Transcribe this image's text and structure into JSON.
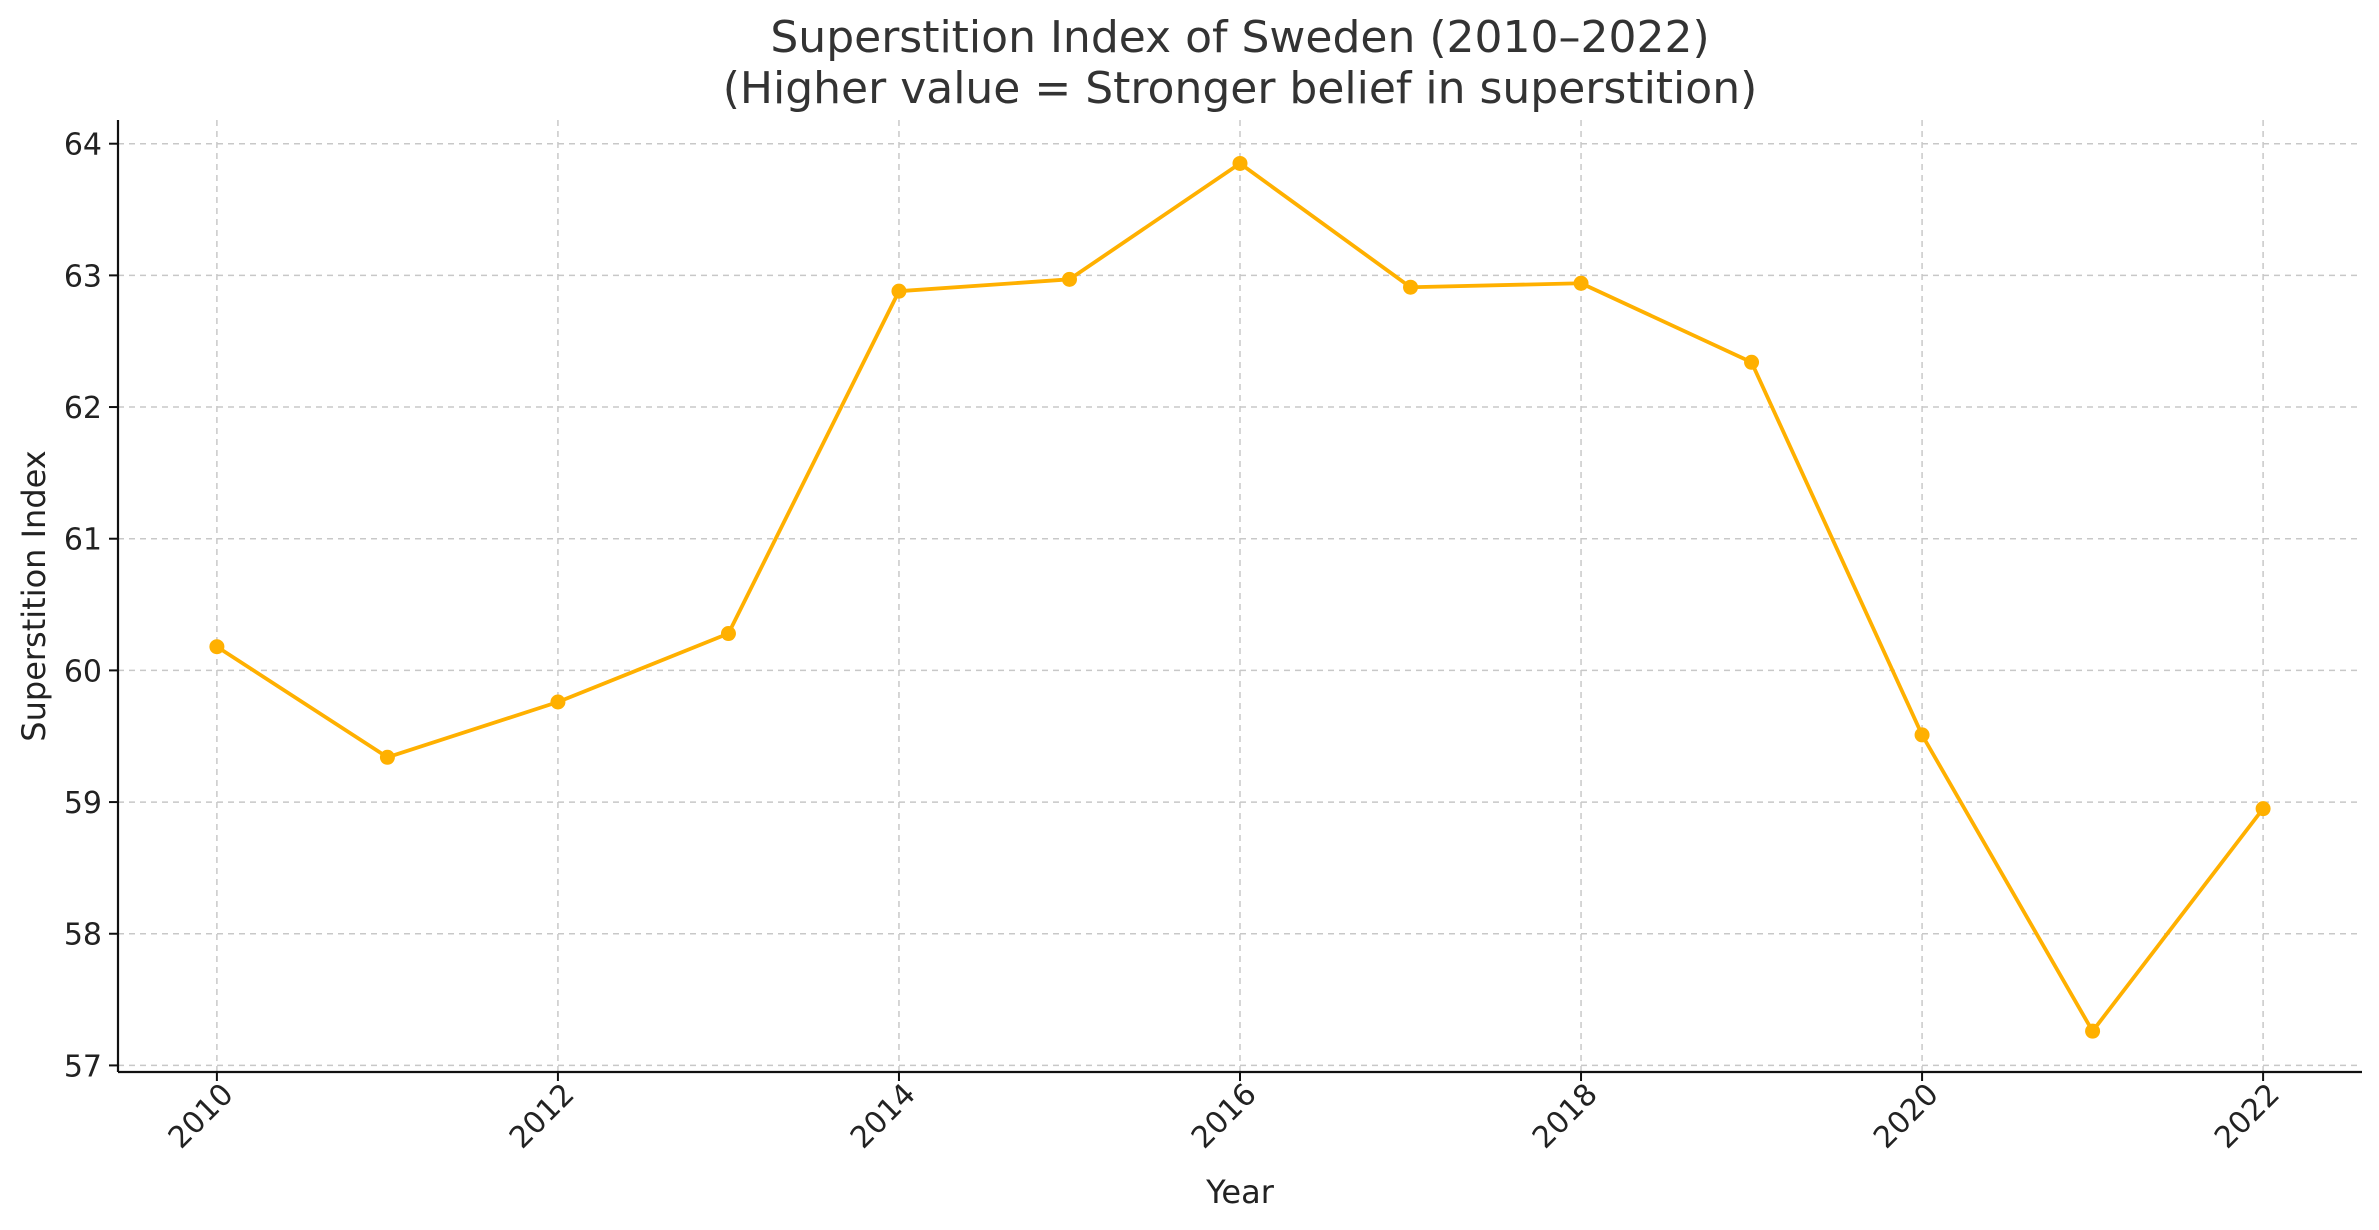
{
  "chart_data": {
    "type": "line",
    "title_line1": "Superstition Index of Sweden (2010–2022)",
    "title_line2": "(Higher value = Stronger belief in superstition)",
    "xlabel": "Year",
    "ylabel": "Superstition Index",
    "x": [
      2010,
      2011,
      2012,
      2013,
      2014,
      2015,
      2016,
      2017,
      2018,
      2019,
      2020,
      2021,
      2022
    ],
    "series": [
      {
        "values": [
          60.18,
          59.34,
          59.76,
          60.28,
          62.88,
          62.97,
          63.85,
          62.91,
          62.94,
          62.34,
          59.51,
          57.26,
          58.95
        ],
        "color": "#FFB000"
      }
    ],
    "xlim": [
      2009.42,
      2022.58
    ],
    "ylim": [
      56.95,
      64.18
    ],
    "x_ticks": [
      2010,
      2012,
      2014,
      2016,
      2018,
      2020,
      2022
    ],
    "y_ticks": [
      57,
      58,
      59,
      60,
      61,
      62,
      63,
      64
    ],
    "grid": true,
    "marker": "circle"
  }
}
